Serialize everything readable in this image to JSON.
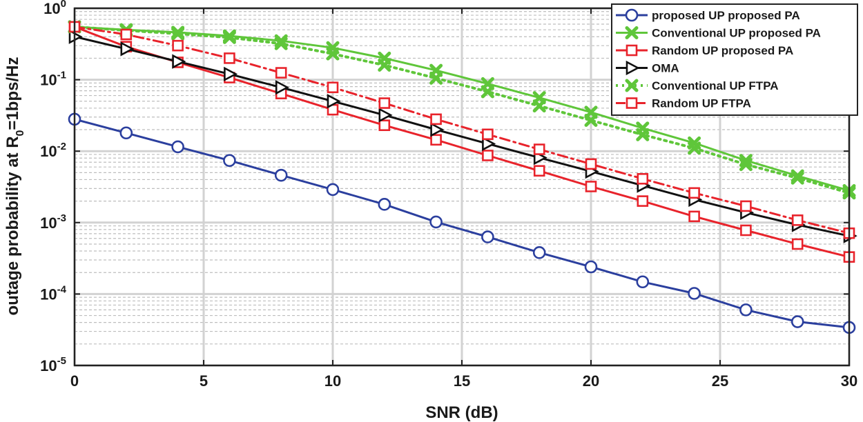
{
  "chart_data": {
    "type": "line",
    "title": "",
    "xlabel": "SNR (dB)",
    "ylabel": {
      "main": "outage probability at R",
      "sub": "0",
      "tail": "=1bps/Hz"
    },
    "xlim": [
      0,
      30
    ],
    "ylim": [
      1e-05,
      1
    ],
    "yscale": "log",
    "grid": true,
    "legend_position": "top-right",
    "x_ticks": [
      0,
      5,
      10,
      15,
      20,
      25,
      30
    ],
    "x_tick_labels": [
      "0",
      "5",
      "10",
      "15",
      "20",
      "25",
      "30"
    ],
    "y_ticks": [
      1,
      0.1,
      0.01,
      0.001,
      0.0001,
      1e-05
    ],
    "y_tick_labels": [
      {
        "base": "10",
        "exp": "0"
      },
      {
        "base": "10",
        "exp": "-1"
      },
      {
        "base": "10",
        "exp": "-2"
      },
      {
        "base": "10",
        "exp": "-3"
      },
      {
        "base": "10",
        "exp": "-4"
      },
      {
        "base": "10",
        "exp": "-5"
      }
    ],
    "x": [
      0,
      2,
      4,
      6,
      8,
      10,
      12,
      14,
      16,
      18,
      20,
      22,
      24,
      26,
      28,
      30
    ],
    "series": [
      {
        "name": "proposed UP proposed PA",
        "color": "#2b3f9e",
        "marker": "circle",
        "dash": "solid",
        "values": [
          0.028,
          0.018,
          0.0115,
          0.0074,
          0.0046,
          0.0029,
          0.0018,
          0.00102,
          0.00063,
          0.00038,
          0.00024,
          0.000148,
          0.000102,
          6e-05,
          4.1e-05,
          3.4e-05
        ]
      },
      {
        "name": "Conventional UP proposed PA",
        "color": "#5fc63a",
        "marker": "x-thick",
        "dash": "solid",
        "values": [
          0.55,
          0.5,
          0.46,
          0.41,
          0.35,
          0.28,
          0.2,
          0.135,
          0.088,
          0.056,
          0.035,
          0.021,
          0.013,
          0.0074,
          0.0045,
          0.0028
        ]
      },
      {
        "name": "Random UP proposed PA",
        "color": "#e8232b",
        "marker": "square",
        "dash": "solid",
        "values": [
          0.55,
          0.29,
          0.175,
          0.107,
          0.064,
          0.038,
          0.023,
          0.0144,
          0.0087,
          0.0053,
          0.0032,
          0.002,
          0.00122,
          0.00078,
          0.0005,
          0.00033
        ]
      },
      {
        "name": "OMA",
        "color": "#111111",
        "marker": "triangle-right",
        "dash": "solid",
        "values": [
          0.4,
          0.27,
          0.18,
          0.12,
          0.078,
          0.05,
          0.032,
          0.02,
          0.0127,
          0.0081,
          0.0052,
          0.0033,
          0.0021,
          0.00138,
          0.00093,
          0.00065
        ]
      },
      {
        "name": "Conventional UP FTPA",
        "color": "#5fc63a",
        "marker": "x-thick",
        "dash": "dotted",
        "values": [
          0.55,
          0.49,
          0.44,
          0.39,
          0.32,
          0.23,
          0.16,
          0.105,
          0.068,
          0.043,
          0.027,
          0.017,
          0.011,
          0.0065,
          0.0042,
          0.0026
        ]
      },
      {
        "name": "Random UP FTPA",
        "color": "#e8232b",
        "marker": "square",
        "dash": "dashdot",
        "values": [
          0.55,
          0.43,
          0.3,
          0.2,
          0.125,
          0.078,
          0.047,
          0.028,
          0.0172,
          0.0106,
          0.0066,
          0.0041,
          0.0026,
          0.0017,
          0.00108,
          0.00071
        ]
      }
    ]
  }
}
